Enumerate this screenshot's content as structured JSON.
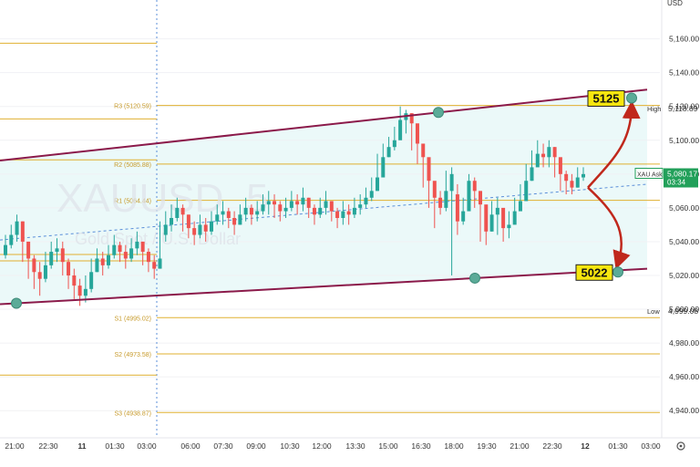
{
  "chart_data": {
    "type": "candlestick",
    "symbol": "XAUUSD",
    "interval": "5",
    "description": "Gold Spot / U.S. Dollar",
    "currency": "USD",
    "ylim": [
      4925,
      5183
    ],
    "y_ticks": [
      "5,160.00",
      "5,140.00",
      "5,120.00",
      "5,100.00",
      "5,080.00",
      "5,060.00",
      "5,040.00",
      "5,020.00",
      "5,000.00",
      "4,980.00",
      "4,960.00",
      "4,940.00"
    ],
    "x_ticks": [
      "21:00",
      "22:30",
      "11",
      "01:30",
      "03:00",
      "06:00",
      "07:30",
      "09:00",
      "10:30",
      "12:00",
      "13:30",
      "15:00",
      "16:30",
      "18:00",
      "19:30",
      "21:00",
      "22:30",
      "12",
      "01:30",
      "03:00"
    ],
    "pivot_levels": [
      {
        "label": "R3 (5120.59)",
        "value": 5120.59
      },
      {
        "label": "R2 (5085.88)",
        "value": 5085.88
      },
      {
        "label": "R1 (5064.44)",
        "value": 5064.44
      },
      {
        "label": "S1 (4995.02)",
        "value": 4995.02
      },
      {
        "label": "S2 (4973.58)",
        "value": 4973.58
      },
      {
        "label": "S3 (4938.87)",
        "value": 4938.87
      }
    ],
    "prior_levels": [
      5157.4,
      5112.6,
      5088.4,
      5032.4,
      5028.6,
      4961.0
    ],
    "series_close": [
      5038,
      5044,
      5052,
      5040,
      5030,
      5022,
      5018,
      5026,
      5034,
      5036,
      5028,
      5020,
      5014,
      5008,
      5012,
      5022,
      5030,
      5026,
      5032,
      5038,
      5034,
      5030,
      5036,
      5040,
      5034,
      5028,
      5024,
      5030,
      5050,
      5054,
      5060,
      5056,
      5048,
      5044,
      5050,
      5046,
      5052,
      5056,
      5058,
      5054,
      5050,
      5056,
      5060,
      5056,
      5058,
      5062,
      5064,
      5062,
      5058,
      5060,
      5064,
      5062,
      5066,
      5060,
      5056,
      5060,
      5064,
      5058,
      5054,
      5058,
      5056,
      5060,
      5062,
      5066,
      5070,
      5078,
      5090,
      5096,
      5100,
      5112,
      5116,
      5110,
      5098,
      5090,
      5076,
      5066,
      5060,
      5070,
      5080,
      5052,
      5058,
      5076,
      5070,
      5062,
      5046,
      5056,
      5060,
      5048,
      5050,
      5058,
      5064,
      5076,
      5084,
      5092,
      5090,
      5096,
      5090,
      5080,
      5076,
      5072,
      5078,
      5080
    ],
    "series_high": [
      5044,
      5050,
      5056,
      5052,
      5040,
      5032,
      5028,
      5034,
      5040,
      5042,
      5040,
      5030,
      5024,
      5018,
      5020,
      5030,
      5036,
      5034,
      5038,
      5044,
      5040,
      5038,
      5042,
      5046,
      5040,
      5036,
      5032,
      5052,
      5058,
      5062,
      5066,
      5062,
      5056,
      5052,
      5056,
      5054,
      5058,
      5062,
      5064,
      5060,
      5058,
      5062,
      5066,
      5062,
      5064,
      5068,
      5070,
      5068,
      5064,
      5066,
      5070,
      5068,
      5072,
      5066,
      5062,
      5066,
      5070,
      5064,
      5060,
      5064,
      5062,
      5066,
      5068,
      5072,
      5078,
      5092,
      5098,
      5102,
      5108,
      5120,
      5118,
      5116,
      5104,
      5096,
      5082,
      5072,
      5070,
      5082,
      5084,
      5074,
      5066,
      5080,
      5078,
      5070,
      5060,
      5064,
      5066,
      5058,
      5058,
      5066,
      5074,
      5086,
      5094,
      5100,
      5098,
      5100,
      5096,
      5086,
      5082,
      5080,
      5084,
      5084
    ],
    "series_low": [
      5030,
      5036,
      5040,
      5028,
      5018,
      5012,
      5008,
      5016,
      5024,
      5028,
      5020,
      5012,
      5006,
      5002,
      5004,
      5010,
      5022,
      5020,
      5024,
      5030,
      5028,
      5024,
      5028,
      5032,
      5026,
      5022,
      5018,
      5024,
      5040,
      5046,
      5052,
      5046,
      5042,
      5038,
      5042,
      5040,
      5044,
      5050,
      5050,
      5048,
      5044,
      5050,
      5052,
      5050,
      5052,
      5056,
      5056,
      5054,
      5052,
      5054,
      5058,
      5056,
      5058,
      5054,
      5050,
      5054,
      5056,
      5052,
      5048,
      5050,
      5050,
      5054,
      5056,
      5060,
      5064,
      5070,
      5080,
      5090,
      5094,
      5106,
      5104,
      5094,
      5086,
      5072,
      5060,
      5048,
      5056,
      5058,
      5020,
      5044,
      5050,
      5060,
      5060,
      5040,
      5038,
      5046,
      5044,
      5040,
      5042,
      5052,
      5060,
      5068,
      5076,
      5086,
      5084,
      5084,
      5078,
      5070,
      5068,
      5068,
      5072,
      5076
    ],
    "series_open": [
      5032,
      5038,
      5044,
      5052,
      5040,
      5030,
      5022,
      5018,
      5026,
      5034,
      5036,
      5028,
      5020,
      5014,
      5008,
      5012,
      5022,
      5030,
      5026,
      5032,
      5038,
      5034,
      5030,
      5036,
      5040,
      5034,
      5028,
      5024,
      5044,
      5050,
      5054,
      5060,
      5056,
      5048,
      5044,
      5050,
      5046,
      5052,
      5056,
      5058,
      5054,
      5050,
      5056,
      5060,
      5056,
      5058,
      5062,
      5064,
      5062,
      5058,
      5060,
      5064,
      5062,
      5066,
      5060,
      5056,
      5060,
      5064,
      5058,
      5054,
      5058,
      5056,
      5060,
      5062,
      5066,
      5070,
      5078,
      5090,
      5096,
      5100,
      5112,
      5116,
      5110,
      5098,
      5090,
      5076,
      5066,
      5060,
      5070,
      5068,
      5052,
      5058,
      5076,
      5070,
      5062,
      5046,
      5056,
      5060,
      5048,
      5050,
      5058,
      5064,
      5076,
      5084,
      5092,
      5090,
      5096,
      5090,
      5080,
      5076,
      5072,
      5078
    ],
    "last_price": "5,080.17",
    "price_label": "XAU Ask",
    "countdown": "03:34",
    "high_label": "High",
    "high_value": "5,118.89",
    "low_label": "Low",
    "low_value": "4,999.08",
    "annotations": [
      {
        "text": "5125",
        "value": 5125
      },
      {
        "text": "5022",
        "value": 5022
      }
    ],
    "colors": {
      "up": "#26a69a",
      "down": "#ef5350",
      "channel": "#8b1a4a",
      "pivot": "#e0b030",
      "arrow": "#c0281c",
      "target_box": "#f6e60f",
      "marker": "#5bab98",
      "price_tag": "#22a05a"
    }
  },
  "ui": {
    "watermark_symbol": "XAUUSD",
    "watermark_interval": "5",
    "watermark_description": "Gold Spot / U.S. Dollar",
    "gear_icon": "gear-icon"
  }
}
